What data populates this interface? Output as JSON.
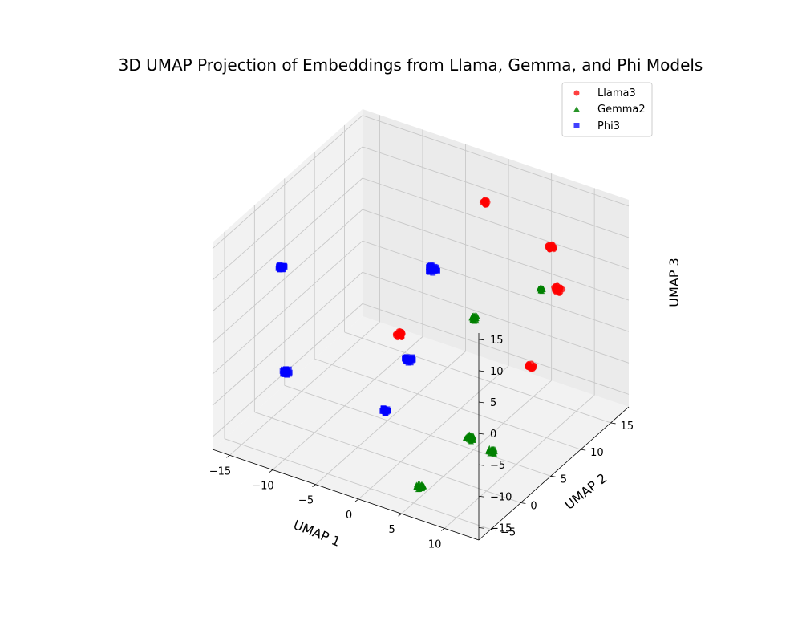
{
  "chart_data": {
    "type": "scatter",
    "projection": "3d",
    "title": "3D UMAP Projection of Embeddings from Llama, Gemma, and Phi Models",
    "xlabel": "UMAP 1",
    "ylabel": "UMAP 2",
    "zlabel": "UMAP 3",
    "xlim": [
      -17,
      14
    ],
    "ylim": [
      -7,
      18
    ],
    "zlim": [
      -17,
      16
    ],
    "xticks": [
      -15,
      -10,
      -5,
      0,
      5,
      10
    ],
    "yticks": [
      -5,
      0,
      5,
      10,
      15
    ],
    "zticks": [
      -15,
      -10,
      -5,
      0,
      5,
      10,
      15
    ],
    "xtick_labels": [
      "−15",
      "−10",
      "−5",
      "0",
      "5",
      "10"
    ],
    "ytick_labels": [
      "−5",
      "0",
      "5",
      "10",
      "15"
    ],
    "ztick_labels": [
      "−15",
      "−10",
      "−5",
      "0",
      "5",
      "10",
      "15"
    ],
    "grid": true,
    "legend_position": "top-right",
    "series": [
      {
        "name": "Llama3",
        "marker": "circle",
        "color": "#ff0000",
        "clusters": [
          {
            "x": -2,
            "y": 17,
            "z": 9,
            "size": 1
          },
          {
            "x": 6,
            "y": 16.5,
            "z": 6,
            "size": 1.2
          },
          {
            "x": 10,
            "y": 12,
            "z": 5,
            "size": 1.7
          },
          {
            "x": -5,
            "y": 7,
            "z": -5,
            "size": 1.4
          },
          {
            "x": 12,
            "y": 4.5,
            "z": 0,
            "size": 1.2
          }
        ]
      },
      {
        "name": "Gemma2",
        "marker": "triangle",
        "color": "#008000",
        "clusters": [
          {
            "x": 8,
            "y": 12,
            "z": 4,
            "size": 0.6
          },
          {
            "x": 1,
            "y": 11,
            "z": -3,
            "size": 1.2
          },
          {
            "x": 6,
            "y": 3,
            "z": -13,
            "size": 1.6
          },
          {
            "x": 12,
            "y": -2,
            "z": -8,
            "size": 1.4
          },
          {
            "x": 4,
            "y": -2.5,
            "z": -17,
            "size": 1.3
          }
        ]
      },
      {
        "name": "Phi3",
        "marker": "square",
        "color": "#0000ff",
        "clusters": [
          {
            "x": -6,
            "y": 14,
            "z": -1,
            "size": 1.9
          },
          {
            "x": -16,
            "y": 3,
            "z": 4,
            "size": 1.2
          },
          {
            "x": -6,
            "y": 10,
            "z": -12,
            "size": 1.6
          },
          {
            "x": -14,
            "y": 1,
            "z": -10,
            "size": 1.3
          },
          {
            "x": -5,
            "y": 4.5,
            "z": -15,
            "size": 1
          }
        ]
      }
    ]
  }
}
